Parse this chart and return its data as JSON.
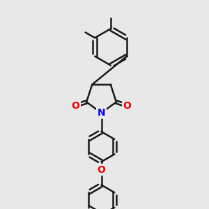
{
  "background_color": "#e8e8e8",
  "bond_color": "#1a1a1a",
  "bond_width": 1.8,
  "atom_colors": {
    "N": "#0000ee",
    "O": "#ee0000"
  },
  "font_size_atom": 10,
  "figsize": [
    3.0,
    3.0
  ],
  "dpi": 100,
  "xlim": [
    0,
    10
  ],
  "ylim": [
    0,
    10
  ]
}
